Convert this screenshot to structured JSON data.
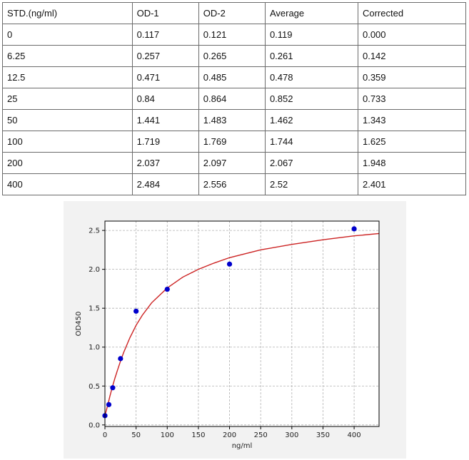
{
  "table": {
    "headers": [
      "STD.(ng/ml)",
      "OD-1",
      "OD-2",
      "Average",
      "Corrected"
    ],
    "rows": [
      [
        "0",
        "0.117",
        "0.121",
        "0.119",
        "0.000"
      ],
      [
        "6.25",
        "0.257",
        "0.265",
        "0.261",
        "0.142"
      ],
      [
        "12.5",
        "0.471",
        "0.485",
        "0.478",
        "0.359"
      ],
      [
        "25",
        "0.84",
        "0.864",
        "0.852",
        "0.733"
      ],
      [
        "50",
        "1.441",
        "1.483",
        "1.462",
        "1.343"
      ],
      [
        "100",
        "1.719",
        "1.769",
        "1.744",
        "1.625"
      ],
      [
        "200",
        "2.037",
        "2.097",
        "2.067",
        "1.948"
      ],
      [
        "400",
        "2.484",
        "2.556",
        "2.52",
        "2.401"
      ]
    ]
  },
  "chart_data": {
    "type": "scatter",
    "xlabel": "ng/ml",
    "ylabel": "OD450",
    "xlim": [
      0,
      440
    ],
    "ylim": [
      -0.02,
      2.62
    ],
    "xticks": [
      "0",
      "50",
      "100",
      "150",
      "200",
      "250",
      "300",
      "350",
      "400"
    ],
    "yticks": [
      "0.0",
      "0.5",
      "1.0",
      "1.5",
      "2.0",
      "2.5"
    ],
    "grid": true,
    "series": [
      {
        "type": "scatter",
        "color": "#0000cc",
        "x": [
          0,
          6.25,
          12.5,
          25,
          50,
          100,
          200,
          400
        ],
        "y": [
          0.119,
          0.261,
          0.478,
          0.852,
          1.462,
          1.744,
          2.067,
          2.52
        ]
      },
      {
        "type": "line",
        "color": "#cc2222",
        "x": [
          0,
          2,
          5,
          8,
          12,
          16,
          20,
          25,
          30,
          40,
          50,
          60,
          75,
          100,
          125,
          150,
          175,
          200,
          250,
          300,
          350,
          400,
          440
        ],
        "y": [
          0.119,
          0.18,
          0.27,
          0.37,
          0.49,
          0.6,
          0.7,
          0.82,
          0.93,
          1.12,
          1.28,
          1.41,
          1.57,
          1.76,
          1.9,
          2.0,
          2.08,
          2.15,
          2.25,
          2.32,
          2.38,
          2.43,
          2.46
        ]
      }
    ]
  }
}
